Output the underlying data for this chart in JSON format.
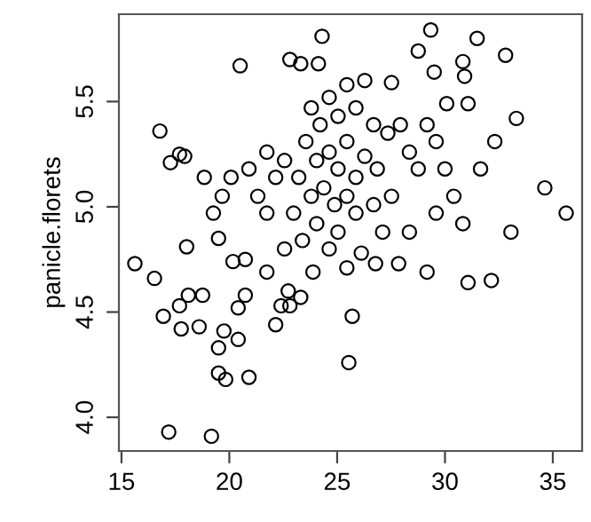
{
  "chart_data": {
    "type": "scatter",
    "ylabel": "panicle.florets",
    "xlim": [
      14.88,
      36.36
    ],
    "ylim": [
      3.84,
      5.915
    ],
    "xticks": [
      15,
      20,
      25,
      30,
      35
    ],
    "yticks": [
      {
        "value": 4.0,
        "label": "4.0"
      },
      {
        "value": 4.5,
        "label": "4.5"
      },
      {
        "value": 5.0,
        "label": "5.0"
      },
      {
        "value": 5.5,
        "label": "5.5"
      }
    ],
    "marker": "circle",
    "grid": false,
    "series": [
      {
        "color": "#000000",
        "x": [
          15.62,
          16.53,
          16.78,
          17.27,
          17.69,
          17.93,
          17.19,
          19.17,
          19.5,
          19.83,
          20.91,
          19.5,
          16.94,
          17.77,
          18.6,
          19.75,
          20.41,
          18.02,
          17.69,
          18.1,
          18.76,
          20.41,
          20.74,
          22.15,
          22.4,
          22.81,
          23.31,
          19.5,
          20.74,
          20.17,
          21.74,
          22.73,
          23.88,
          20.5,
          22.81,
          23.31,
          24.13,
          24.3,
          29.34,
          31.49,
          28.76,
          32.81,
          30.83,
          30.91,
          29.5,
          33.31,
          34.63,
          35.62,
          33.06,
          27.52,
          30.08,
          31.07,
          31.07,
          32.15,
          25.7,
          25.54,
          27.85,
          29.17,
          26.78,
          26.12,
          23.8,
          24.21,
          24.63,
          25.04,
          25.45,
          25.87,
          26.28,
          26.69,
          23.55,
          24.05,
          24.63,
          25.04,
          25.45,
          25.87,
          26.28,
          26.86,
          27.35,
          27.93,
          28.35,
          23.22,
          23.8,
          24.38,
          24.88,
          25.45,
          22.56,
          22.15,
          21.74,
          21.32,
          20.91,
          22.98,
          24.05,
          25.04,
          25.87,
          26.69,
          27.52,
          28.76,
          29.59,
          30.41,
          31.65,
          27.11,
          24.63,
          23.39,
          20.08,
          19.67,
          19.26,
          18.84,
          21.74,
          22.56,
          25.45,
          29.59,
          28.35,
          30.83,
          32.31,
          30.0,
          29.17
        ],
        "values": [
          4.73,
          4.66,
          5.36,
          5.21,
          5.25,
          5.24,
          3.93,
          3.91,
          4.21,
          4.18,
          4.19,
          4.33,
          4.48,
          4.42,
          4.43,
          4.41,
          4.37,
          4.81,
          4.53,
          4.58,
          4.58,
          4.52,
          4.58,
          4.44,
          4.53,
          4.53,
          4.57,
          4.85,
          4.75,
          4.74,
          4.69,
          4.6,
          4.69,
          5.67,
          5.7,
          5.68,
          5.68,
          5.81,
          5.84,
          5.8,
          5.74,
          5.72,
          5.69,
          5.62,
          5.64,
          5.42,
          5.09,
          4.97,
          4.88,
          5.59,
          5.49,
          5.49,
          4.64,
          4.65,
          4.48,
          4.26,
          4.73,
          4.69,
          4.73,
          4.78,
          5.47,
          5.39,
          5.52,
          5.43,
          5.58,
          5.47,
          5.6,
          5.39,
          5.31,
          5.22,
          5.26,
          5.18,
          5.31,
          5.14,
          5.24,
          5.18,
          5.35,
          5.39,
          5.26,
          5.14,
          5.05,
          5.09,
          5.01,
          5.05,
          5.22,
          5.14,
          5.26,
          5.05,
          5.18,
          4.97,
          4.92,
          4.88,
          4.97,
          5.01,
          5.05,
          5.18,
          5.31,
          5.05,
          5.18,
          4.88,
          4.8,
          4.84,
          5.14,
          5.05,
          4.97,
          5.14,
          4.97,
          4.8,
          4.71,
          4.97,
          4.88,
          4.92,
          5.31,
          5.18,
          5.39
        ]
      }
    ]
  }
}
